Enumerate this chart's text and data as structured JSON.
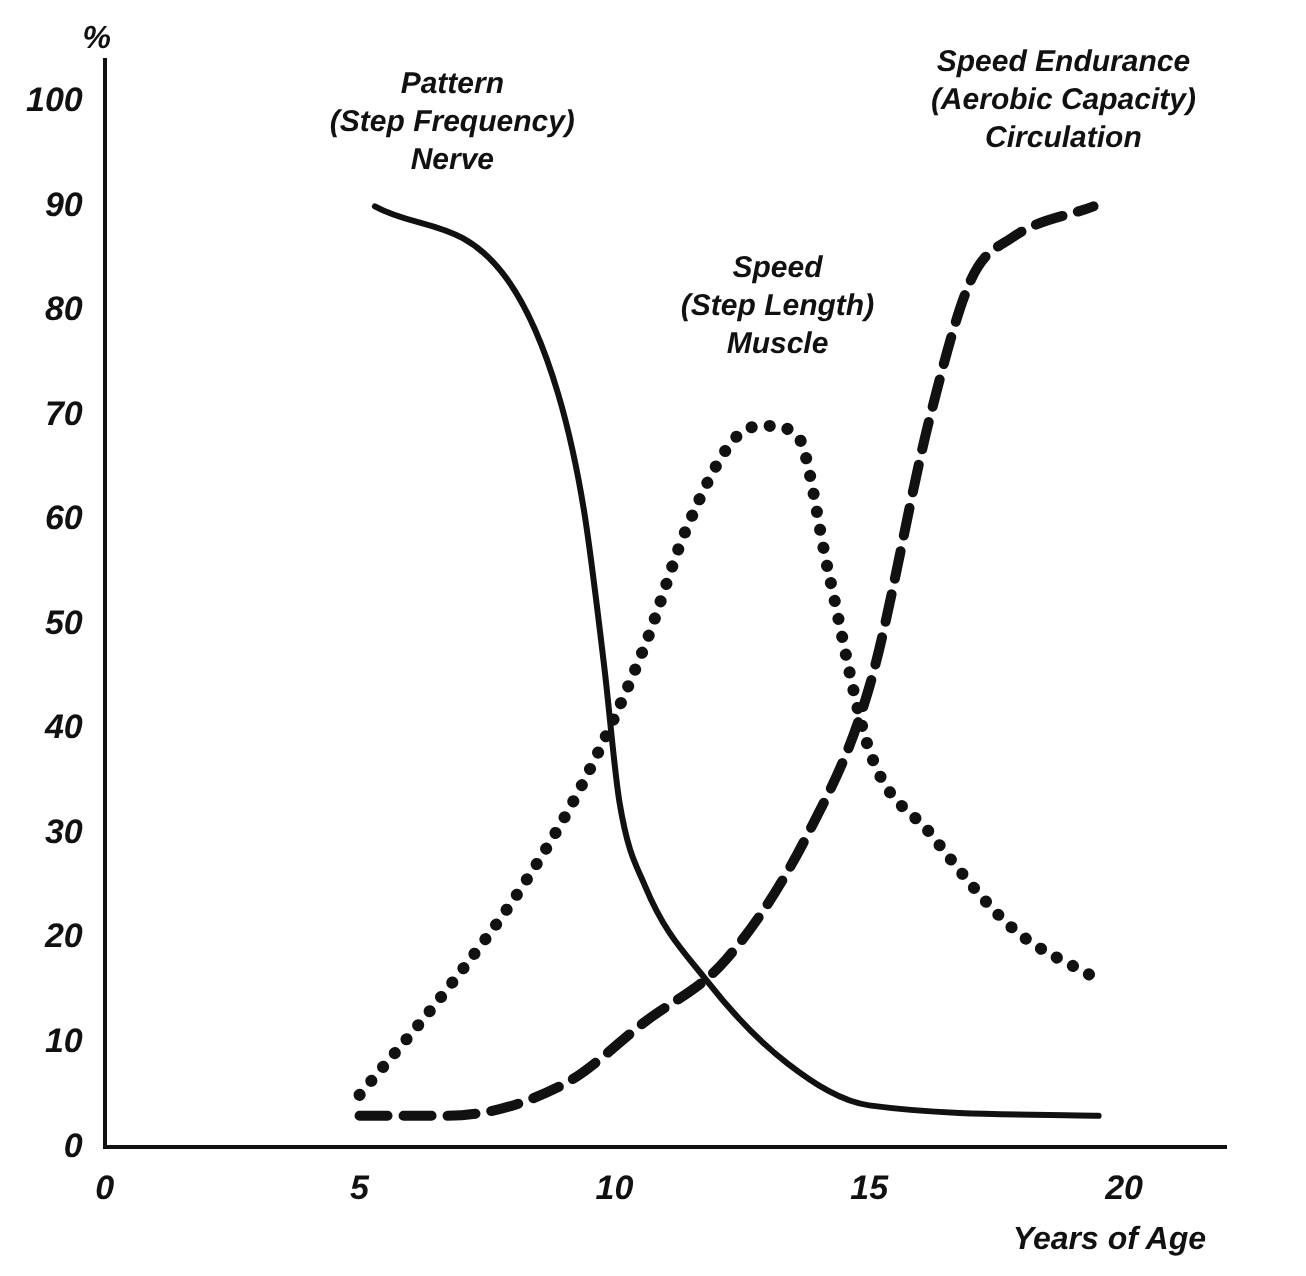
{
  "chart_data": {
    "type": "line",
    "xlabel": "Years of Age",
    "ylabel": "%",
    "xlim": [
      0,
      22
    ],
    "ylim": [
      0,
      104
    ],
    "xticks": [
      0,
      5,
      10,
      15,
      20
    ],
    "yticks": [
      0,
      10,
      20,
      30,
      40,
      50,
      60,
      70,
      80,
      90,
      100
    ],
    "grid": false,
    "legend": false,
    "marker": "none",
    "series": [
      {
        "color": "#111111",
        "line_style": "solid",
        "x": [
          5.3,
          7.9,
          8.9,
          9.4,
          9.8,
          10.1,
          10.6,
          11.8,
          13.4,
          15,
          19.5
        ],
        "values": [
          90,
          83,
          72,
          61,
          46,
          33,
          25,
          16,
          8,
          4,
          3
        ]
      },
      {
        "color": "#111111",
        "line_style": "dotted",
        "x": [
          5,
          6.7,
          8.2,
          9.4,
          10.6,
          11.4,
          12.4,
          13,
          13.6,
          14.2,
          15,
          16.2,
          17.8,
          19.5
        ],
        "values": [
          5,
          15,
          25,
          35,
          48,
          59,
          68,
          69,
          68,
          55,
          38,
          30,
          21,
          16
        ]
      },
      {
        "color": "#111111",
        "line_style": "dashed",
        "x": [
          5,
          6.7,
          9,
          10.6,
          12.2,
          13.8,
          15,
          16.2,
          17,
          17.8,
          19.4
        ],
        "values": [
          3,
          3,
          6,
          12,
          18,
          30,
          44,
          70,
          83,
          87,
          90
        ]
      }
    ],
    "annotations": [
      "Pattern\n(Step Frequency)\nNerve",
      "Speed\n(Step Length)\nMuscle",
      "Speed Endurance\n(Aerobic Capacity)\nCirculation"
    ]
  }
}
